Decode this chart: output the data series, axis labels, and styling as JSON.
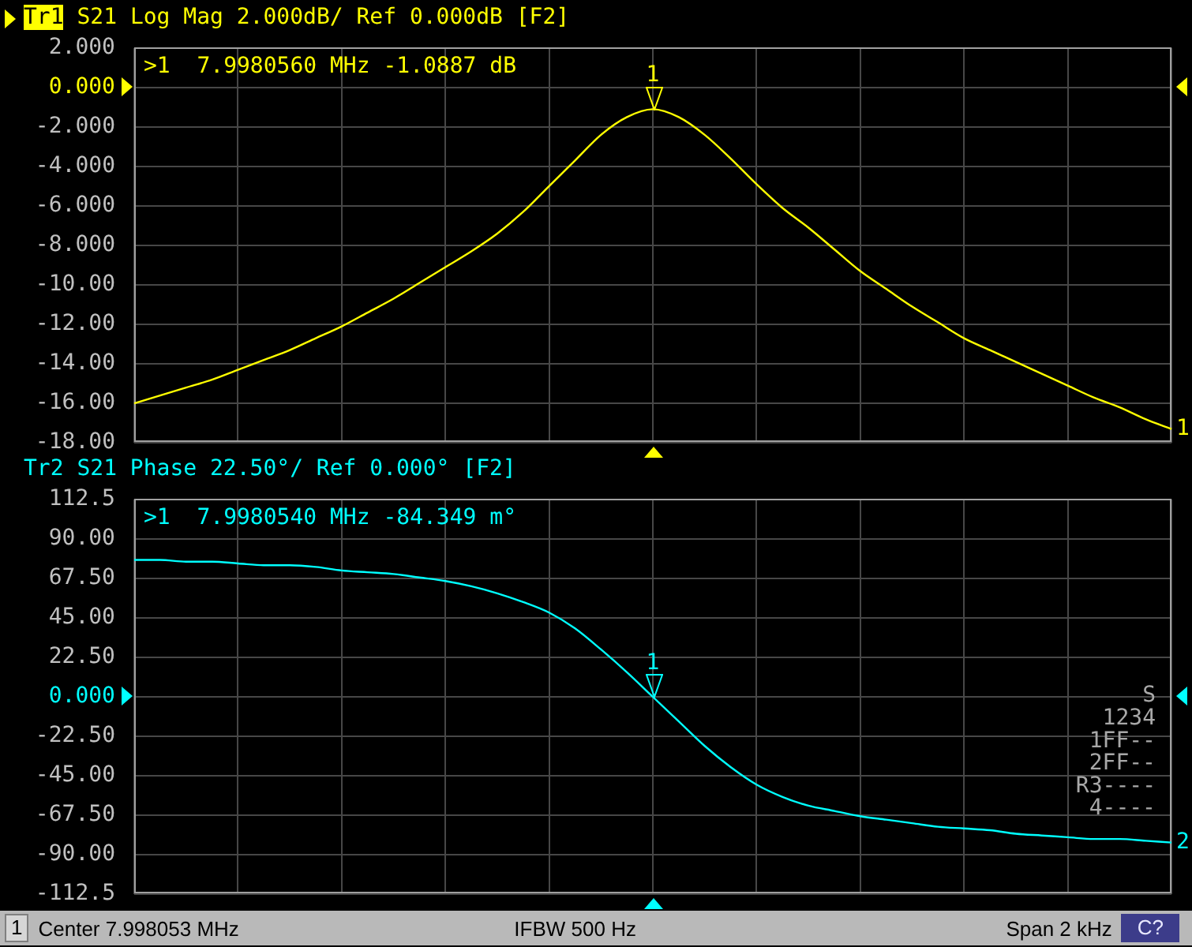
{
  "chart_data": [
    {
      "type": "line",
      "title": "Tr1 S21 Log Mag 2.000dB/ Ref 0.000dB [F2]",
      "categories": [
        null,
        null,
        null,
        null,
        null,
        null,
        null,
        null,
        null,
        null,
        null,
        null,
        null,
        null,
        null,
        null,
        null,
        null,
        null,
        null,
        null,
        null,
        null,
        null,
        null,
        null,
        null,
        null,
        null,
        null,
        null,
        null,
        null,
        null,
        null,
        null,
        null,
        null,
        null,
        null,
        null
      ],
      "series": [
        {
          "name": "1",
          "color": "#ffff00",
          "values": [
            -16.0,
            -15.6,
            -15.2,
            -14.8,
            -14.3,
            -13.8,
            -13.3,
            -12.7,
            -12.1,
            -11.4,
            -10.7,
            -9.9,
            -9.1,
            -8.3,
            -7.4,
            -6.3,
            -5.0,
            -3.7,
            -2.4,
            -1.5,
            -1.1,
            -1.5,
            -2.4,
            -3.6,
            -4.9,
            -6.1,
            -7.1,
            -8.2,
            -9.3,
            -10.2,
            -11.1,
            -11.9,
            -12.7,
            -13.3,
            -13.9,
            -14.5,
            -15.1,
            -15.7,
            -16.2,
            -16.8,
            -17.3
          ]
        }
      ],
      "ylim": [
        -18,
        2
      ],
      "yticks": [
        {
          "value": 2,
          "label": "2.000"
        },
        {
          "value": 0,
          "label": "0.000"
        },
        {
          "value": -2,
          "label": "-2.000"
        },
        {
          "value": -4,
          "label": "-4.000"
        },
        {
          "value": -6,
          "label": "-6.000"
        },
        {
          "value": -8,
          "label": "-8.000"
        },
        {
          "value": -10,
          "label": "-10.00"
        },
        {
          "value": -12,
          "label": "-12.00"
        },
        {
          "value": -14,
          "label": "-14.00"
        },
        {
          "value": -16,
          "label": "-16.00"
        },
        {
          "value": -18,
          "label": "-18.00"
        }
      ],
      "grid": true,
      "annotations": [
        ">1  7.9980560 MHz -1.0887 dB",
        {
          "text": "1",
          "y": -1.0887
        }
      ]
    },
    {
      "type": "line",
      "title": "Tr2 S21 Phase 22.50°/ Ref 0.000° [F2]",
      "categories": [
        null,
        null,
        null,
        null,
        null,
        null,
        null,
        null,
        null,
        null,
        null,
        null,
        null,
        null,
        null,
        null,
        null,
        null,
        null,
        null,
        null,
        null,
        null,
        null,
        null,
        null,
        null,
        null,
        null,
        null,
        null,
        null,
        null,
        null,
        null,
        null,
        null,
        null,
        null,
        null,
        null
      ],
      "series": [
        {
          "name": "2",
          "color": "#00ffff",
          "values": [
            78,
            78,
            77,
            77,
            76,
            75,
            75,
            74,
            72,
            71,
            70,
            68,
            66,
            63,
            59,
            54,
            48,
            39,
            27,
            14,
            0,
            -14,
            -28,
            -40,
            -50,
            -57,
            -62,
            -65,
            -68,
            -70,
            -72,
            -74,
            -75,
            -76,
            -78,
            -79,
            -80,
            -81,
            -81,
            -82,
            -83
          ]
        }
      ],
      "ylim": [
        -112.5,
        112.5
      ],
      "yticks": [
        112.5,
        {
          "value": 90,
          "label": "90.00"
        },
        {
          "value": 67.5,
          "label": "67.50"
        },
        {
          "value": 45,
          "label": "45.00"
        },
        {
          "value": 22.5,
          "label": "22.50"
        },
        {
          "value": 0,
          "label": "0.000"
        },
        {
          "value": -22.5,
          "label": "-22.50"
        },
        {
          "value": -45,
          "label": "-45.00"
        },
        {
          "value": -67.5,
          "label": "-67.50"
        },
        {
          "value": -90,
          "label": "-90.00"
        },
        -112.5
      ],
      "grid": true,
      "annotations": [
        ">1  7.9980540 MHz -84.349 m°",
        {
          "text": "1",
          "y": -0.084349
        },
        "S",
        "1234",
        "1FF--",
        "2FF--",
        "R3----",
        "4----"
      ]
    },
    {
      "type": "other",
      "annotations": [
        "1",
        "Center 7.998053 MHz",
        "IFBW 500 Hz",
        "Span 2 kHz",
        "C?"
      ]
    }
  ]
}
